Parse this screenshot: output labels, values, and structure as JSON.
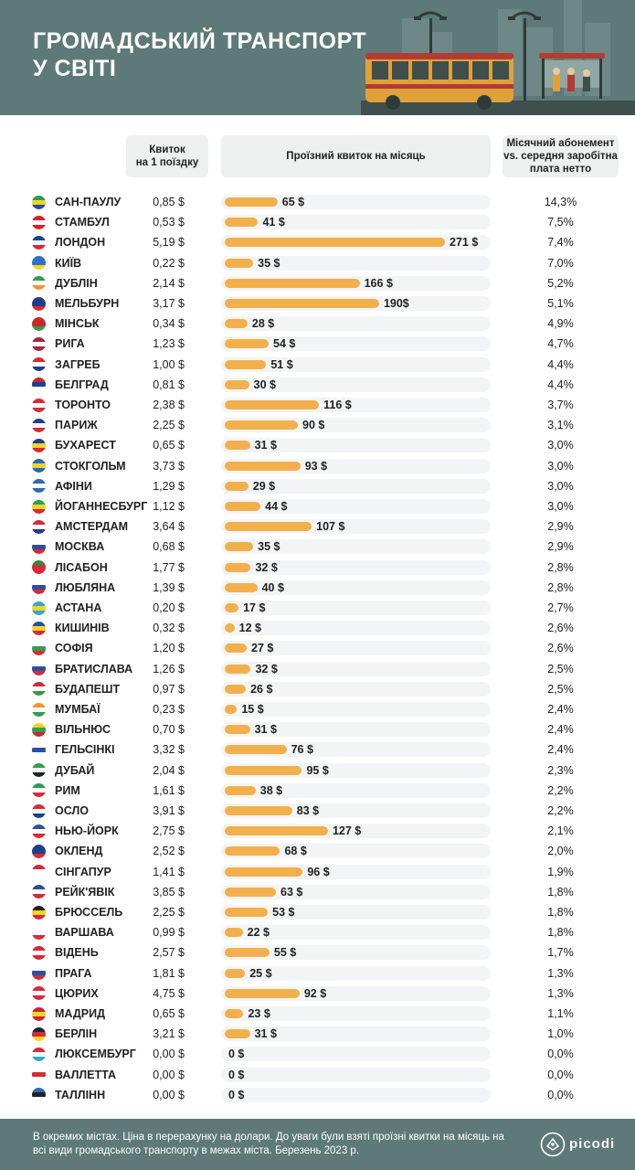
{
  "header": {
    "title_line1": "ГРОМАДСЬКИЙ ТРАНСПОРТ",
    "title_line2": "У СВІТІ"
  },
  "columns": {
    "single_line1": "Квиток",
    "single_line2": "на 1 поїздку",
    "monthly": "Проїзний квиток на місяць",
    "ratio_line1": "Місячний абонемент",
    "ratio_line2": "vs. середня заробітна",
    "ratio_line3": "плата нетто"
  },
  "chart_data": {
    "type": "bar",
    "orientation": "horizontal",
    "value_unit": "$",
    "xlim": [
      0,
      271
    ],
    "categories": [
      "САН-ПАУЛУ",
      "СТАМБУЛ",
      "ЛОНДОН",
      "КИЇВ",
      "ДУБЛІН",
      "МЕЛЬБУРН",
      "МІНСЬК",
      "РИГА",
      "ЗАГРЕБ",
      "БЕЛГРАД",
      "ТОРОНТО",
      "ПАРИЖ",
      "БУХАРЕСТ",
      "СТОКГОЛЬМ",
      "АФІНИ",
      "ЙОГАННЕСБУРГ",
      "АМСТЕРДАМ",
      "МОСКВА",
      "ЛІСАБОН",
      "ЛЮБЛЯНА",
      "АСТАНА",
      "КИШИНІВ",
      "СОФІЯ",
      "БРАТИСЛАВА",
      "БУДАПЕШТ",
      "МУМБАЇ",
      "ВІЛЬНЮС",
      "ГЕЛЬСІНКІ",
      "ДУБАЙ",
      "РИМ",
      "ОСЛО",
      "НЬЮ-ЙОРК",
      "ОКЛЕНД",
      "СІНГАПУР",
      "РЕЙК'ЯВІК",
      "БРЮССЕЛЬ",
      "ВАРШАВА",
      "ВІДЕНЬ",
      "ПРАГА",
      "ЦЮРИХ",
      "МАДРИД",
      "БЕРЛІН",
      "ЛЮКСЕМБУРГ",
      "ВАЛЛЕТТА",
      "ТАЛЛІНН"
    ],
    "values": [
      65,
      41,
      271,
      35,
      166,
      190,
      28,
      54,
      51,
      30,
      116,
      90,
      31,
      93,
      29,
      44,
      107,
      35,
      32,
      40,
      17,
      12,
      27,
      32,
      26,
      15,
      31,
      76,
      95,
      38,
      83,
      127,
      68,
      96,
      63,
      53,
      22,
      55,
      25,
      92,
      23,
      31,
      0,
      0,
      0
    ],
    "value_labels": [
      "65 $",
      "41 $",
      "271 $",
      "35 $",
      "166 $",
      "190$",
      "28 $",
      "54 $",
      "51 $",
      "30 $",
      "116 $",
      "90 $",
      "31 $",
      "93 $",
      "29 $",
      "44 $",
      "107 $",
      "35 $",
      "32 $",
      "40 $",
      "17 $",
      "12 $",
      "27 $",
      "32 $",
      "26 $",
      "15 $",
      "31 $",
      "76 $",
      "95 $",
      "38 $",
      "83 $",
      "127 $",
      "68 $",
      "96 $",
      "63 $",
      "53 $",
      "22 $",
      "55 $",
      "25 $",
      "92 $",
      "23 $",
      "31 $",
      "0 $",
      "0 $",
      "0 $"
    ],
    "single_ticket": [
      "0,85 $",
      "0,53 $",
      "5,19 $",
      "0,22 $",
      "2,14 $",
      "3,17 $",
      "0,34 $",
      "1,23 $",
      "1,00 $",
      "0,81 $",
      "2,38 $",
      "2,25 $",
      "0,65 $",
      "3,73 $",
      "1,29 $",
      "1,12 $",
      "3,64 $",
      "0,68 $",
      "1,77 $",
      "1,39 $",
      "0,20 $",
      "0,32 $",
      "1,20 $",
      "1,26 $",
      "0,97 $",
      "0,23 $",
      "0,70 $",
      "3,32 $",
      "2,04 $",
      "1,61 $",
      "3,91 $",
      "2,75 $",
      "2,52 $",
      "1,41 $",
      "3,85 $",
      "2,25 $",
      "0,99 $",
      "2,57 $",
      "1,81 $",
      "4,75 $",
      "0,65 $",
      "3,21 $",
      "0,00 $",
      "0,00 $",
      "0,00 $"
    ],
    "ratio": [
      "14,3%",
      "7,5%",
      "7,4%",
      "7,0%",
      "5,2%",
      "5,1%",
      "4,9%",
      "4,7%",
      "4,4%",
      "4,4%",
      "3,7%",
      "3,1%",
      "3,0%",
      "3,0%",
      "3,0%",
      "3,0%",
      "2,9%",
      "2,9%",
      "2,8%",
      "2,8%",
      "2,7%",
      "2,6%",
      "2,6%",
      "2,5%",
      "2,5%",
      "2,4%",
      "2,4%",
      "2,4%",
      "2,3%",
      "2,2%",
      "2,2%",
      "2,1%",
      "2,0%",
      "1,9%",
      "1,8%",
      "1,8%",
      "1,8%",
      "1,7%",
      "1,3%",
      "1,3%",
      "1,1%",
      "1,0%",
      "0,0%",
      "0,0%",
      "0,0%"
    ],
    "flag_colors": [
      [
        "#2e9e4a",
        "#f5d42a",
        "#2a4f9e"
      ],
      [
        "#e31e24",
        "#ffffff",
        "#e31e24"
      ],
      [
        "#1f3f8c",
        "#ffffff",
        "#d62b35"
      ],
      [
        "#2a73c9",
        "#2a73c9",
        "#f6d22b"
      ],
      [
        "#2f9e4f",
        "#ffffff",
        "#f39433"
      ],
      [
        "#1f3f8c",
        "#1f3f8c",
        "#d62b35"
      ],
      [
        "#c8282e",
        "#c8282e",
        "#3a9a43"
      ],
      [
        "#a12a3b",
        "#ffffff",
        "#a12a3b"
      ],
      [
        "#d62b35",
        "#ffffff",
        "#1f3f8c"
      ],
      [
        "#c8282e",
        "#1f3f8c",
        "#ffffff"
      ],
      [
        "#d62b35",
        "#ffffff",
        "#d62b35"
      ],
      [
        "#1f3f8c",
        "#ffffff",
        "#d62b35"
      ],
      [
        "#1f3f8c",
        "#f5d42a",
        "#d62b35"
      ],
      [
        "#2a6bb5",
        "#f5d42a",
        "#2a6bb5"
      ],
      [
        "#2a6bb5",
        "#ffffff",
        "#2a6bb5"
      ],
      [
        "#2f9e4f",
        "#f5d42a",
        "#d62b35"
      ],
      [
        "#d62b35",
        "#ffffff",
        "#1f3f8c"
      ],
      [
        "#ffffff",
        "#2a4f9e",
        "#d62b35"
      ],
      [
        "#2f8a3e",
        "#d62b35",
        "#d62b35"
      ],
      [
        "#ffffff",
        "#2a4f9e",
        "#d62b35"
      ],
      [
        "#35a9c9",
        "#f5d42a",
        "#35a9c9"
      ],
      [
        "#2a4f9e",
        "#f5d42a",
        "#d62b35"
      ],
      [
        "#ffffff",
        "#2f9e4f",
        "#d62b35"
      ],
      [
        "#ffffff",
        "#2a4f9e",
        "#d62b35"
      ],
      [
        "#d62b35",
        "#ffffff",
        "#3a9a43"
      ],
      [
        "#f39433",
        "#ffffff",
        "#2f9e4f"
      ],
      [
        "#f5d42a",
        "#2f9e4f",
        "#c8282e"
      ],
      [
        "#ffffff",
        "#2a4f9e",
        "#ffffff"
      ],
      [
        "#2f9e4f",
        "#ffffff",
        "#222222"
      ],
      [
        "#2f9e4f",
        "#ffffff",
        "#d62b35"
      ],
      [
        "#d62b35",
        "#ffffff",
        "#1f3f8c"
      ],
      [
        "#2a4f9e",
        "#ffffff",
        "#d62b35"
      ],
      [
        "#1f3f8c",
        "#1f3f8c",
        "#d62b35"
      ],
      [
        "#d62b35",
        "#ffffff",
        "#ffffff"
      ],
      [
        "#2a4f9e",
        "#ffffff",
        "#d62b35"
      ],
      [
        "#222222",
        "#f5d42a",
        "#d62b35"
      ],
      [
        "#ffffff",
        "#ffffff",
        "#d62b35"
      ],
      [
        "#d62b35",
        "#ffffff",
        "#d62b35"
      ],
      [
        "#ffffff",
        "#2a4f9e",
        "#d62b35"
      ],
      [
        "#d62b35",
        "#ffffff",
        "#d62b35"
      ],
      [
        "#c8282e",
        "#f5d42a",
        "#c8282e"
      ],
      [
        "#222222",
        "#d62b35",
        "#f5d42a"
      ],
      [
        "#d62b35",
        "#ffffff",
        "#35a9c9"
      ],
      [
        "#ffffff",
        "#d62b35",
        "#ffffff"
      ],
      [
        "#2a6bb5",
        "#222222",
        "#ffffff"
      ]
    ]
  },
  "footer": {
    "note": "В окремих містах. Ціна в перерахунку на долари. До уваги були взяті проїзні квитки на місяць на всі види громадського транспорту в межах міста. Березень 2023 р.",
    "logo_text": "picodi"
  },
  "colors": {
    "header_bg": "#5d7a78",
    "bar": "#f2b04d",
    "bus": "#e0a13a",
    "track": "#f3f4f5"
  }
}
